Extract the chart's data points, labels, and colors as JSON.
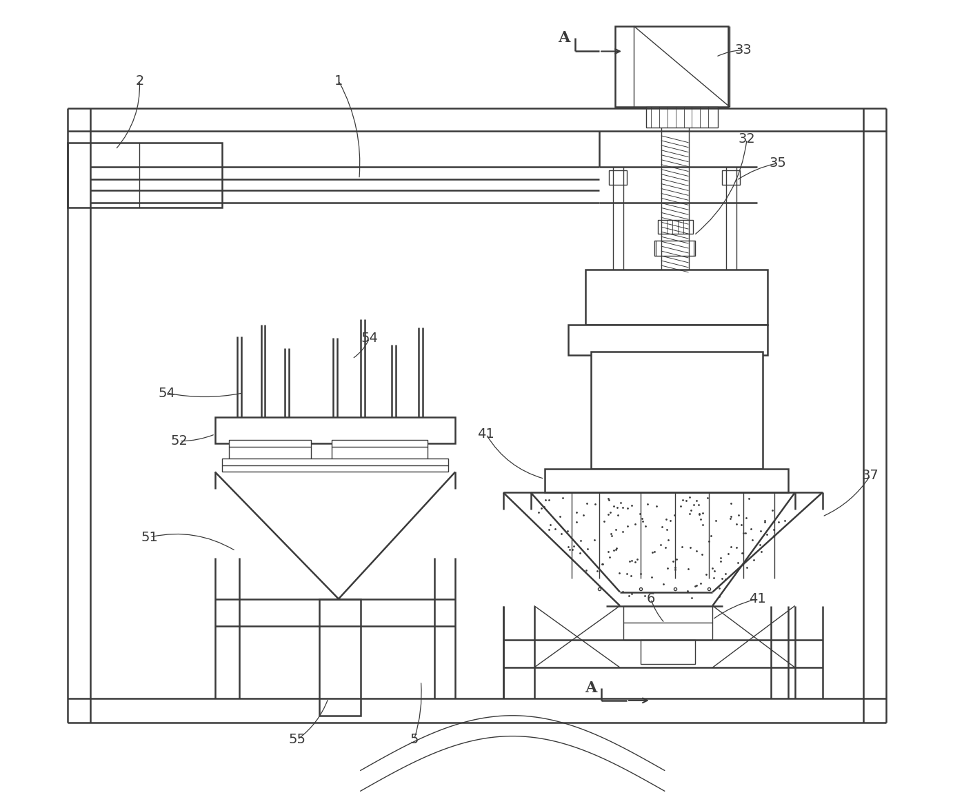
{
  "bg_color": "#ffffff",
  "line_color": "#3a3a3a",
  "lw": 1.8,
  "lw_thin": 1.0,
  "fig_width": 13.82,
  "fig_height": 11.53
}
